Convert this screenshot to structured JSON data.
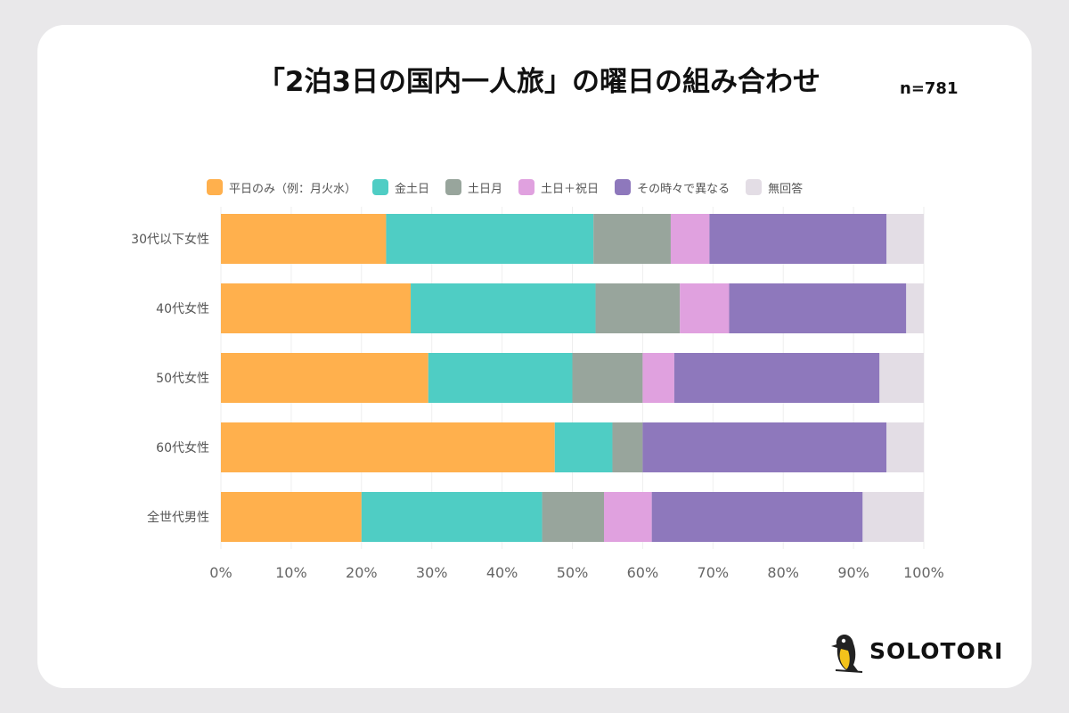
{
  "title": "「2泊3日の国内一人旅」の曜日の組み合わせ",
  "sample_size": "n=781",
  "brand": "SOLOTORI",
  "chart_data": {
    "type": "bar",
    "orientation": "horizontal",
    "stacked": true,
    "percent": true,
    "categories": [
      "30代以下女性",
      "40代女性",
      "50代女性",
      "60代女性",
      "全世代男性"
    ],
    "series": [
      {
        "name": "平日のみ（例：月火水）",
        "color": "#ffb04d",
        "values": [
          23.5,
          27.0,
          29.5,
          47.5,
          20.0
        ]
      },
      {
        "name": "金土日",
        "color": "#4fcdc4",
        "values": [
          29.5,
          26.3,
          20.5,
          8.2,
          25.7
        ]
      },
      {
        "name": "土日月",
        "color": "#98a59c",
        "values": [
          11.0,
          12.0,
          10.0,
          4.3,
          8.8
        ]
      },
      {
        "name": "土日＋祝日",
        "color": "#e0a1df",
        "values": [
          5.5,
          7.0,
          4.5,
          0.0,
          6.8
        ]
      },
      {
        "name": "その時々で異なる",
        "color": "#8e78bc",
        "values": [
          25.2,
          25.2,
          29.2,
          34.7,
          30.0
        ]
      },
      {
        "name": "無回答",
        "color": "#e3dde5",
        "values": [
          5.3,
          2.5,
          6.3,
          5.3,
          8.7
        ]
      }
    ],
    "xlim": [
      0,
      100
    ],
    "xticks": [
      "0%",
      "10%",
      "20%",
      "30%",
      "40%",
      "50%",
      "60%",
      "70%",
      "80%",
      "90%",
      "100%"
    ],
    "legend_position": "top",
    "grid": true
  }
}
